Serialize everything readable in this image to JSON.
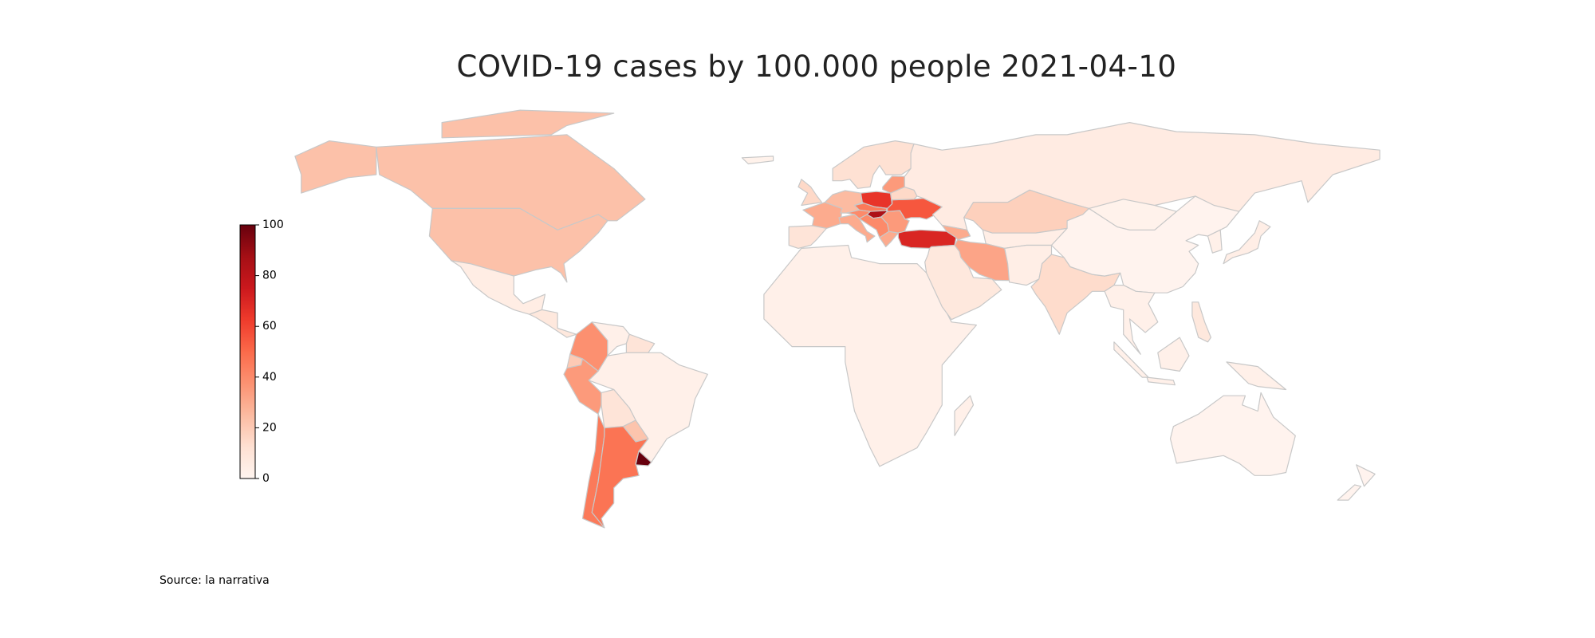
{
  "chart_data": {
    "type": "choropleth",
    "title": "COVID-19 cases by 100.000 people 2021-04-10",
    "source": "Source: la narrativa",
    "values": [
      23,
      23,
      5,
      8,
      38,
      3,
      10,
      20,
      35,
      3,
      10,
      22,
      45,
      47,
      100,
      3,
      3,
      30,
      10,
      15,
      25,
      30,
      65,
      45,
      85,
      40,
      40,
      30,
      35,
      55,
      15,
      35,
      12,
      6,
      70,
      30,
      18,
      4,
      32,
      8,
      4,
      14,
      1,
      2,
      3,
      4,
      3,
      3,
      8,
      1,
      1,
      2
    ],
    "colorscale": [
      "#fff5f0",
      "#fee0d2",
      "#fcbba1",
      "#fc9272",
      "#fb6a4a",
      "#ef3b2c",
      "#cb181d",
      "#a50f15",
      "#67000d"
    ],
    "border_color": "#c8c8c8",
    "colorbar": {
      "lim": [
        0,
        100
      ],
      "ticks": [
        0,
        20,
        40,
        60,
        80,
        100
      ]
    }
  }
}
